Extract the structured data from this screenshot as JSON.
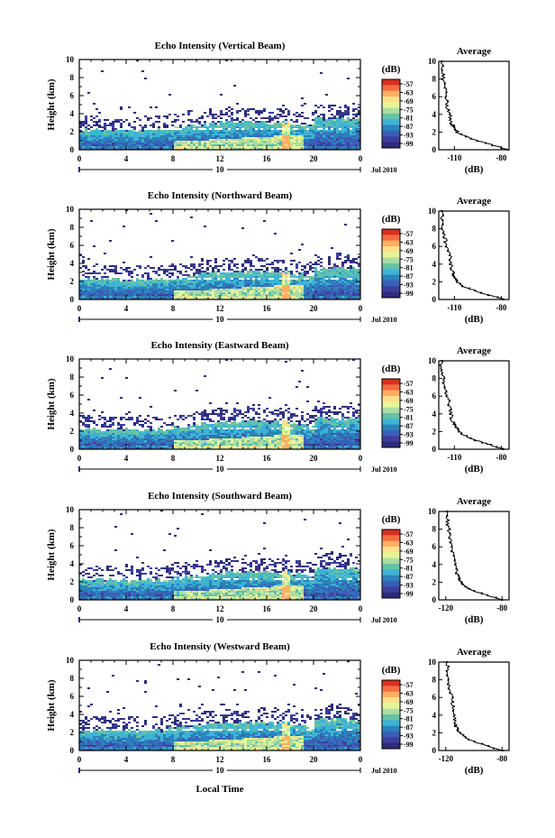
{
  "figure": {
    "xlabel": "Local Time",
    "date_label": "Jul 2010",
    "day_label": "10"
  },
  "colorscale": {
    "unit": "(dB)",
    "ticks": [
      "-57",
      "-63",
      "-69",
      "-75",
      "-81",
      "-87",
      "-93",
      "-99"
    ],
    "colors": [
      "#d7301f",
      "#f46d43",
      "#fdae61",
      "#fee08b",
      "#e6f598",
      "#abdda4",
      "#66c2a5",
      "#3db3d6",
      "#2b83ba",
      "#3a5fb8",
      "#3e3e9b",
      "#2c2c7a"
    ]
  },
  "chart_data": [
    {
      "type": "heatmap",
      "title": "Echo Intensity (Vertical Beam)",
      "xlabel": "",
      "ylabel": "Height (km)",
      "xlim": [
        0,
        24
      ],
      "ylim": [
        0,
        10
      ],
      "xticks": [
        "0",
        "4",
        "8",
        "12",
        "16",
        "20",
        "0"
      ],
      "yticks": [
        "0",
        "2",
        "4",
        "6",
        "8",
        "10"
      ],
      "colorbar_label": "(dB)",
      "colorbar_ticks": [
        -57,
        -63,
        -69,
        -75,
        -81,
        -87,
        -93,
        -99
      ],
      "profile": {
        "title": "Average",
        "xlabel": "(dB)",
        "xticks": [
          "-110",
          "-80"
        ],
        "xlim": [
          -120,
          -75
        ],
        "height_km": [
          0,
          0.5,
          1,
          1.5,
          2,
          2.5,
          3,
          4,
          5,
          6,
          7,
          8,
          9,
          10
        ],
        "db": [
          -76,
          -85,
          -95,
          -103,
          -108,
          -110,
          -112,
          -113,
          -115,
          -115,
          -116,
          -117,
          -118,
          -118
        ]
      }
    },
    {
      "type": "heatmap",
      "title": "Echo Intensity (Northward Beam)",
      "xlabel": "",
      "ylabel": "Height (km)",
      "xlim": [
        0,
        24
      ],
      "ylim": [
        0,
        10
      ],
      "xticks": [
        "0",
        "4",
        "8",
        "12",
        "16",
        "20",
        "0"
      ],
      "yticks": [
        "0",
        "2",
        "4",
        "6",
        "8",
        "10"
      ],
      "colorbar_label": "(dB)",
      "colorbar_ticks": [
        -57,
        -63,
        -69,
        -75,
        -81,
        -87,
        -93,
        -99
      ],
      "profile": {
        "title": "Average",
        "xlabel": "(dB)",
        "xticks": [
          "-110",
          "-80"
        ],
        "xlim": [
          -120,
          -75
        ],
        "height_km": [
          0,
          0.5,
          1,
          1.5,
          2,
          2.5,
          3,
          4,
          5,
          6,
          7,
          8,
          9,
          10
        ],
        "db": [
          -78,
          -88,
          -97,
          -104,
          -108,
          -110,
          -111,
          -112,
          -113,
          -115,
          -116,
          -117,
          -118,
          -118
        ]
      }
    },
    {
      "type": "heatmap",
      "title": "Echo Intensity (Eastward Beam)",
      "xlabel": "",
      "ylabel": "Height (km)",
      "xlim": [
        0,
        24
      ],
      "ylim": [
        0,
        10
      ],
      "xticks": [
        "0",
        "4",
        "8",
        "12",
        "16",
        "20",
        "0"
      ],
      "yticks": [
        "0",
        "2",
        "4",
        "6",
        "8",
        "10"
      ],
      "colorbar_label": "(dB)",
      "colorbar_ticks": [
        -57,
        -63,
        -69,
        -75,
        -81,
        -87,
        -93,
        -99
      ],
      "profile": {
        "title": "Average",
        "xlabel": "(dB)",
        "xticks": [
          "-110",
          "-80"
        ],
        "xlim": [
          -120,
          -75
        ],
        "height_km": [
          0,
          0.5,
          1,
          1.5,
          2,
          2.5,
          3,
          4,
          5,
          6,
          7,
          8,
          9,
          10
        ],
        "db": [
          -78,
          -87,
          -96,
          -103,
          -107,
          -109,
          -111,
          -112,
          -113,
          -115,
          -116,
          -117,
          -118,
          -118
        ]
      }
    },
    {
      "type": "heatmap",
      "title": "Echo Intensity (Southward Beam)",
      "xlabel": "",
      "ylabel": "Height (km)",
      "xlim": [
        0,
        24
      ],
      "ylim": [
        0,
        10
      ],
      "xticks": [
        "0",
        "4",
        "8",
        "12",
        "16",
        "20",
        "0"
      ],
      "yticks": [
        "0",
        "2",
        "4",
        "6",
        "8",
        "10"
      ],
      "colorbar_label": "(dB)",
      "colorbar_ticks": [
        -57,
        -63,
        -69,
        -75,
        -81,
        -87,
        -93,
        -99
      ],
      "profile": {
        "title": "Average",
        "xlabel": "(dB)",
        "xticks": [
          "-120",
          "-80"
        ],
        "xlim": [
          -125,
          -75
        ],
        "height_km": [
          0,
          0.5,
          1,
          1.5,
          2,
          2.5,
          3,
          4,
          5,
          6,
          7,
          8,
          9,
          10
        ],
        "db": [
          -80,
          -90,
          -100,
          -106,
          -109,
          -111,
          -112,
          -113,
          -114,
          -116,
          -117,
          -118,
          -119,
          -119
        ]
      }
    },
    {
      "type": "heatmap",
      "title": "Echo Intensity (Westward Beam)",
      "xlabel": "Local Time",
      "ylabel": "Height (km)",
      "xlim": [
        0,
        24
      ],
      "ylim": [
        0,
        10
      ],
      "xticks": [
        "0",
        "4",
        "8",
        "12",
        "16",
        "20",
        "0"
      ],
      "yticks": [
        "0",
        "2",
        "4",
        "6",
        "8",
        "10"
      ],
      "colorbar_label": "(dB)",
      "colorbar_ticks": [
        -57,
        -63,
        -69,
        -75,
        -81,
        -87,
        -93,
        -99
      ],
      "profile": {
        "title": "Average",
        "xlabel": "(dB)",
        "xticks": [
          "-120",
          "-80"
        ],
        "xlim": [
          -125,
          -75
        ],
        "height_km": [
          0,
          0.5,
          1,
          1.5,
          2,
          2.5,
          3,
          4,
          5,
          6,
          7,
          8,
          9,
          10
        ],
        "db": [
          -80,
          -90,
          -100,
          -106,
          -110,
          -112,
          -113,
          -114,
          -115,
          -116,
          -117,
          -118,
          -119,
          -119
        ]
      }
    }
  ]
}
